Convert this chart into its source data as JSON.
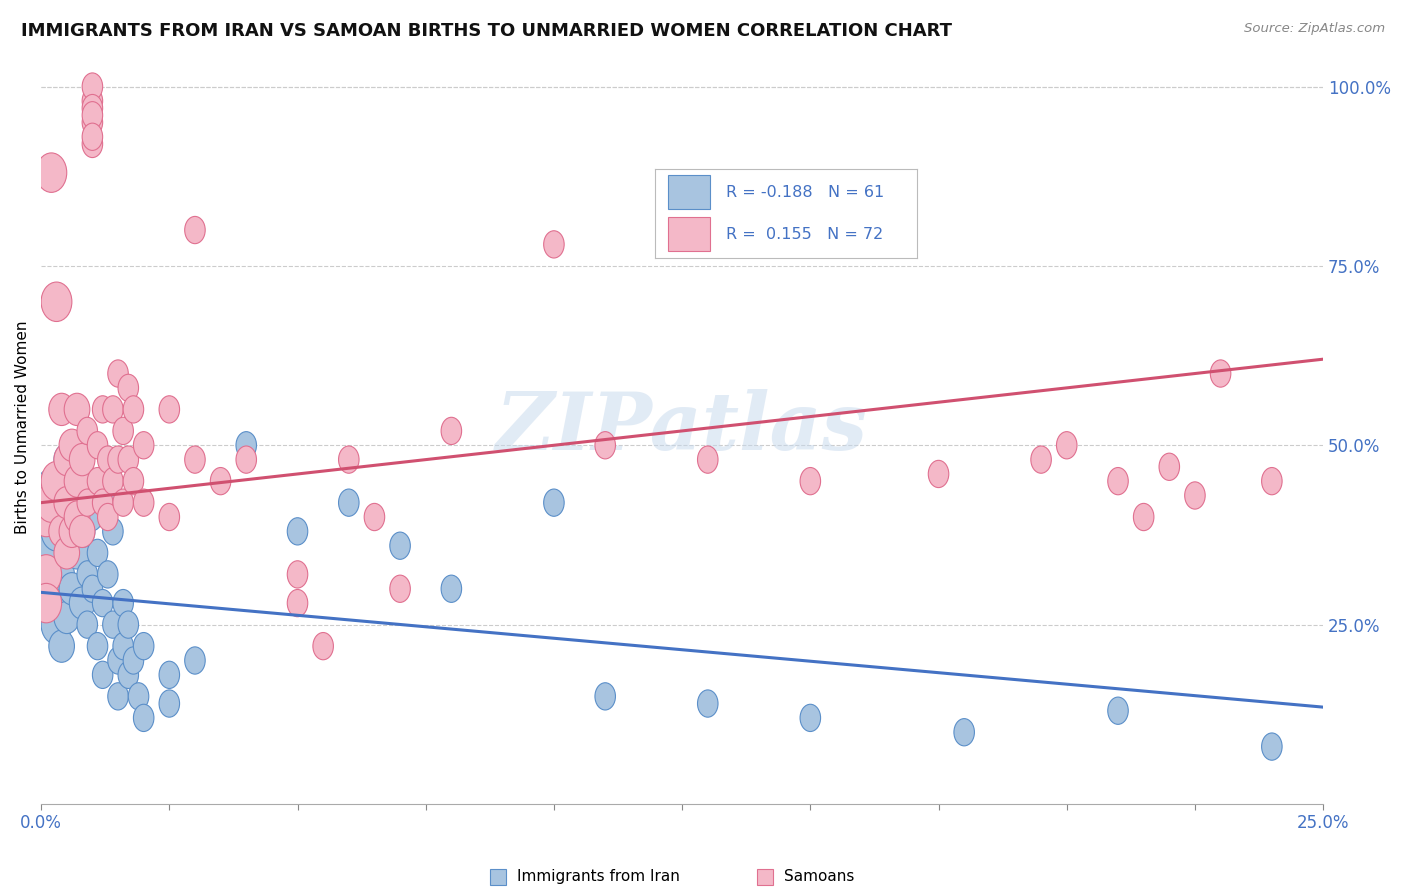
{
  "title": "IMMIGRANTS FROM IRAN VS SAMOAN BIRTHS TO UNMARRIED WOMEN CORRELATION CHART",
  "source": "Source: ZipAtlas.com",
  "ylabel": "Births to Unmarried Women",
  "right_yticks": [
    "100.0%",
    "75.0%",
    "50.0%",
    "25.0%"
  ],
  "right_ytick_vals": [
    1.0,
    0.75,
    0.5,
    0.25
  ],
  "blue_color": "#a8c4e0",
  "pink_color": "#f4b8c8",
  "blue_edge_color": "#5b8fc9",
  "pink_edge_color": "#e07090",
  "blue_line_color": "#4472c4",
  "pink_line_color": "#d05070",
  "watermark": "ZIPatlas",
  "blue_r": -0.188,
  "pink_r": 0.155,
  "blue_n": 61,
  "pink_n": 72,
  "xmin": 0.0,
  "xmax": 0.25,
  "ymin": 0.0,
  "ymax": 1.05,
  "blue_trend_x": [
    0.0,
    0.25
  ],
  "blue_trend_y": [
    0.295,
    0.135
  ],
  "pink_trend_x": [
    0.0,
    0.25
  ],
  "pink_trend_y": [
    0.42,
    0.62
  ],
  "blue_scatter": [
    [
      0.001,
      0.32
    ],
    [
      0.001,
      0.38
    ],
    [
      0.001,
      0.3
    ],
    [
      0.001,
      0.42
    ],
    [
      0.002,
      0.35
    ],
    [
      0.002,
      0.28
    ],
    [
      0.002,
      0.44
    ],
    [
      0.002,
      0.36
    ],
    [
      0.003,
      0.3
    ],
    [
      0.003,
      0.38
    ],
    [
      0.003,
      0.25
    ],
    [
      0.003,
      0.4
    ],
    [
      0.004,
      0.32
    ],
    [
      0.004,
      0.45
    ],
    [
      0.004,
      0.22
    ],
    [
      0.005,
      0.48
    ],
    [
      0.005,
      0.38
    ],
    [
      0.005,
      0.26
    ],
    [
      0.006,
      0.42
    ],
    [
      0.006,
      0.3
    ],
    [
      0.007,
      0.45
    ],
    [
      0.007,
      0.35
    ],
    [
      0.008,
      0.28
    ],
    [
      0.008,
      0.38
    ],
    [
      0.009,
      0.32
    ],
    [
      0.009,
      0.25
    ],
    [
      0.01,
      0.4
    ],
    [
      0.01,
      0.3
    ],
    [
      0.011,
      0.35
    ],
    [
      0.011,
      0.22
    ],
    [
      0.012,
      0.28
    ],
    [
      0.012,
      0.18
    ],
    [
      0.013,
      0.42
    ],
    [
      0.013,
      0.32
    ],
    [
      0.014,
      0.38
    ],
    [
      0.014,
      0.25
    ],
    [
      0.015,
      0.2
    ],
    [
      0.015,
      0.15
    ],
    [
      0.016,
      0.28
    ],
    [
      0.016,
      0.22
    ],
    [
      0.017,
      0.18
    ],
    [
      0.017,
      0.25
    ],
    [
      0.018,
      0.2
    ],
    [
      0.019,
      0.15
    ],
    [
      0.02,
      0.22
    ],
    [
      0.02,
      0.12
    ],
    [
      0.025,
      0.18
    ],
    [
      0.025,
      0.14
    ],
    [
      0.03,
      0.2
    ],
    [
      0.04,
      0.5
    ],
    [
      0.05,
      0.38
    ],
    [
      0.06,
      0.42
    ],
    [
      0.07,
      0.36
    ],
    [
      0.08,
      0.3
    ],
    [
      0.1,
      0.42
    ],
    [
      0.11,
      0.15
    ],
    [
      0.13,
      0.14
    ],
    [
      0.15,
      0.12
    ],
    [
      0.18,
      0.1
    ],
    [
      0.21,
      0.13
    ],
    [
      0.24,
      0.08
    ]
  ],
  "pink_scatter": [
    [
      0.001,
      0.4
    ],
    [
      0.001,
      0.32
    ],
    [
      0.001,
      0.28
    ],
    [
      0.002,
      0.88
    ],
    [
      0.002,
      0.42
    ],
    [
      0.003,
      0.7
    ],
    [
      0.003,
      0.45
    ],
    [
      0.004,
      0.55
    ],
    [
      0.004,
      0.38
    ],
    [
      0.005,
      0.48
    ],
    [
      0.005,
      0.35
    ],
    [
      0.005,
      0.42
    ],
    [
      0.006,
      0.5
    ],
    [
      0.006,
      0.38
    ],
    [
      0.007,
      0.45
    ],
    [
      0.007,
      0.55
    ],
    [
      0.007,
      0.4
    ],
    [
      0.008,
      0.48
    ],
    [
      0.008,
      0.38
    ],
    [
      0.009,
      0.52
    ],
    [
      0.009,
      0.42
    ],
    [
      0.01,
      0.98
    ],
    [
      0.01,
      0.95
    ],
    [
      0.01,
      1.0
    ],
    [
      0.01,
      0.92
    ],
    [
      0.01,
      0.97
    ],
    [
      0.01,
      0.96
    ],
    [
      0.01,
      0.93
    ],
    [
      0.011,
      0.45
    ],
    [
      0.011,
      0.5
    ],
    [
      0.012,
      0.55
    ],
    [
      0.012,
      0.42
    ],
    [
      0.013,
      0.48
    ],
    [
      0.013,
      0.4
    ],
    [
      0.014,
      0.55
    ],
    [
      0.014,
      0.45
    ],
    [
      0.015,
      0.6
    ],
    [
      0.015,
      0.48
    ],
    [
      0.016,
      0.52
    ],
    [
      0.016,
      0.42
    ],
    [
      0.017,
      0.58
    ],
    [
      0.017,
      0.48
    ],
    [
      0.018,
      0.55
    ],
    [
      0.018,
      0.45
    ],
    [
      0.02,
      0.5
    ],
    [
      0.02,
      0.42
    ],
    [
      0.025,
      0.55
    ],
    [
      0.025,
      0.4
    ],
    [
      0.03,
      0.8
    ],
    [
      0.03,
      0.48
    ],
    [
      0.035,
      0.45
    ],
    [
      0.04,
      0.48
    ],
    [
      0.05,
      0.32
    ],
    [
      0.05,
      0.28
    ],
    [
      0.055,
      0.22
    ],
    [
      0.06,
      0.48
    ],
    [
      0.065,
      0.4
    ],
    [
      0.07,
      0.3
    ],
    [
      0.08,
      0.52
    ],
    [
      0.1,
      0.78
    ],
    [
      0.11,
      0.5
    ],
    [
      0.13,
      0.48
    ],
    [
      0.15,
      0.45
    ],
    [
      0.175,
      0.46
    ],
    [
      0.195,
      0.48
    ],
    [
      0.2,
      0.5
    ],
    [
      0.21,
      0.45
    ],
    [
      0.215,
      0.4
    ],
    [
      0.22,
      0.47
    ],
    [
      0.225,
      0.43
    ],
    [
      0.23,
      0.6
    ],
    [
      0.24,
      0.45
    ]
  ]
}
